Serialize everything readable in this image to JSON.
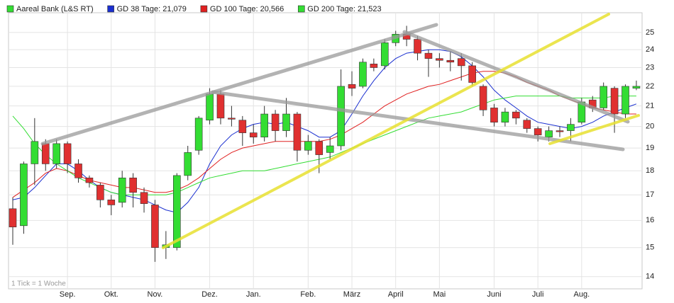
{
  "chart_data": {
    "type": "candlestick",
    "name": "Aareal Bank (L&S RT)",
    "up_color": "#33dd33",
    "down_color": "#e03030",
    "categories": [
      null,
      null,
      null,
      null,
      null,
      "Sep.",
      null,
      null,
      null,
      "Okt.",
      null,
      null,
      null,
      "Nov.",
      null,
      null,
      null,
      null,
      "Dez.",
      null,
      null,
      null,
      "Jan.",
      null,
      null,
      null,
      null,
      "Feb.",
      null,
      null,
      null,
      "März",
      null,
      null,
      null,
      "April",
      null,
      null,
      null,
      "Mai",
      null,
      null,
      null,
      null,
      "Juni",
      null,
      null,
      null,
      "Juli",
      null,
      null,
      null,
      "Aug.",
      null,
      null,
      null,
      null,
      null
    ],
    "open": [
      16.45,
      15.8,
      18.3,
      19.2,
      18.3,
      19.2,
      18.3,
      17.7,
      17.4,
      16.8,
      16.7,
      17.7,
      17.1,
      16.6,
      15.0,
      15.0,
      17.8,
      18.9,
      20.3,
      21.6,
      20.4,
      20.3,
      19.7,
      19.5,
      20.6,
      19.8,
      20.6,
      18.9,
      19.3,
      18.8,
      19.1,
      22.1,
      22.0,
      23.2,
      23.1,
      24.4,
      24.9,
      24.6,
      23.8,
      23.5,
      23.4,
      23.5,
      23.1,
      22.0,
      20.9,
      20.2,
      20.7,
      20.3,
      19.9,
      19.5,
      19.8,
      19.8,
      20.2,
      21.3,
      20.9,
      21.9,
      20.6,
      21.9
    ],
    "high": [
      16.9,
      18.4,
      20.4,
      19.4,
      19.4,
      19.3,
      18.5,
      17.8,
      17.5,
      17.0,
      18.0,
      17.9,
      17.3,
      16.8,
      15.6,
      17.9,
      19.1,
      20.5,
      21.9,
      21.8,
      21.0,
      20.5,
      20.1,
      21.0,
      20.8,
      21.4,
      20.7,
      19.6,
      19.4,
      19.5,
      22.9,
      22.8,
      23.5,
      23.5,
      24.6,
      25.1,
      25.4,
      24.8,
      24.0,
      23.8,
      23.9,
      23.8,
      23.3,
      22.1,
      21.1,
      20.9,
      20.8,
      20.4,
      20.0,
      20.0,
      20.0,
      20.4,
      21.4,
      21.5,
      22.2,
      22.0,
      22.1,
      22.3
    ],
    "low": [
      15.1,
      15.5,
      17.4,
      18.0,
      18.1,
      17.9,
      17.5,
      17.3,
      16.5,
      16.2,
      16.5,
      16.5,
      16.3,
      14.5,
      14.6,
      14.9,
      17.6,
      18.7,
      20.1,
      20.1,
      20.0,
      19.1,
      19.2,
      19.3,
      19.3,
      19.5,
      18.4,
      18.7,
      17.9,
      18.5,
      18.9,
      21.5,
      21.9,
      22.8,
      22.9,
      24.2,
      24.2,
      23.4,
      22.5,
      23.0,
      22.8,
      22.3,
      22.0,
      20.5,
      20.0,
      20.0,
      20.1,
      19.7,
      19.3,
      19.3,
      19.5,
      19.3,
      20.1,
      20.7,
      20.8,
      19.7,
      20.4,
      21.8
    ],
    "close": [
      15.75,
      18.3,
      19.3,
      18.3,
      19.2,
      18.3,
      17.7,
      17.5,
      16.8,
      16.6,
      17.7,
      17.1,
      16.65,
      15.0,
      15.1,
      17.8,
      18.8,
      20.4,
      21.6,
      20.4,
      20.35,
      19.7,
      19.5,
      20.6,
      19.8,
      20.6,
      18.9,
      19.3,
      18.7,
      19.1,
      22.0,
      21.9,
      23.3,
      23.0,
      24.4,
      24.9,
      24.6,
      23.8,
      23.5,
      23.4,
      23.3,
      23.1,
      22.2,
      20.8,
      20.2,
      20.7,
      20.4,
      19.9,
      19.6,
      19.8,
      19.75,
      20.1,
      21.2,
      20.9,
      22.0,
      20.6,
      22.0,
      22.0
    ],
    "series": [
      {
        "name": "GD 38 Tage: 21,079",
        "color": "#1a2fd0",
        "values": [
          16.8,
          16.9,
          17.3,
          17.8,
          18.3,
          18.3,
          18.0,
          17.6,
          17.3,
          17.1,
          17.0,
          16.9,
          16.8,
          16.6,
          16.4,
          16.3,
          16.7,
          17.3,
          18.3,
          19.1,
          19.6,
          19.9,
          20.1,
          20.2,
          20.1,
          20.2,
          20.0,
          19.8,
          19.5,
          19.5,
          19.8,
          20.6,
          21.5,
          22.3,
          23.0,
          23.5,
          23.8,
          23.9,
          24.0,
          24.0,
          23.9,
          23.6,
          23.1,
          22.5,
          21.8,
          21.3,
          20.9,
          20.5,
          20.2,
          20.1,
          20.0,
          19.9,
          20.0,
          20.2,
          20.5,
          20.7,
          20.9,
          21.1
        ]
      },
      {
        "name": "GD 100 Tage: 20,566",
        "color": "#e02020",
        "values": [
          16.9,
          17.2,
          17.5,
          17.9,
          18.1,
          18.0,
          17.8,
          17.6,
          17.5,
          17.4,
          17.3,
          17.3,
          17.2,
          17.1,
          17.1,
          17.2,
          17.4,
          17.7,
          18.1,
          18.5,
          18.8,
          19.0,
          19.1,
          19.2,
          19.3,
          19.3,
          19.3,
          19.3,
          19.3,
          19.4,
          19.6,
          19.9,
          20.2,
          20.6,
          21.0,
          21.3,
          21.6,
          21.8,
          22.0,
          22.1,
          22.3,
          22.5,
          22.7,
          22.8,
          22.8,
          22.7,
          22.5,
          22.2,
          22.0,
          21.8,
          21.5,
          21.3,
          21.1,
          20.9,
          20.8,
          20.7,
          20.6,
          20.6
        ]
      },
      {
        "name": "GD 200 Tage: 21,523",
        "color": "#33dd33",
        "values": [
          20.5,
          19.9,
          19.2,
          18.7,
          18.3,
          18.0,
          17.7,
          17.5,
          17.3,
          17.1,
          17.0,
          17.0,
          17.0,
          17.0,
          17.0,
          17.1,
          17.3,
          17.5,
          17.7,
          17.8,
          17.9,
          18.0,
          18.0,
          18.0,
          18.1,
          18.2,
          18.3,
          18.4,
          18.5,
          18.6,
          18.8,
          19.0,
          19.2,
          19.4,
          19.6,
          19.8,
          20.0,
          20.2,
          20.4,
          20.5,
          20.6,
          20.7,
          20.9,
          21.1,
          21.3,
          21.4,
          21.5,
          21.5,
          21.5,
          21.5,
          21.5,
          21.4,
          21.4,
          21.4,
          21.4,
          21.5,
          21.5,
          21.5
        ]
      }
    ],
    "ylim": [
      13.6,
      26.2
    ],
    "yticks": [
      14,
      15,
      16,
      17,
      18,
      19,
      20,
      21,
      22,
      23,
      24,
      25
    ],
    "log": true,
    "grid": true,
    "note": "1 Tick = 1 Woche"
  }
}
